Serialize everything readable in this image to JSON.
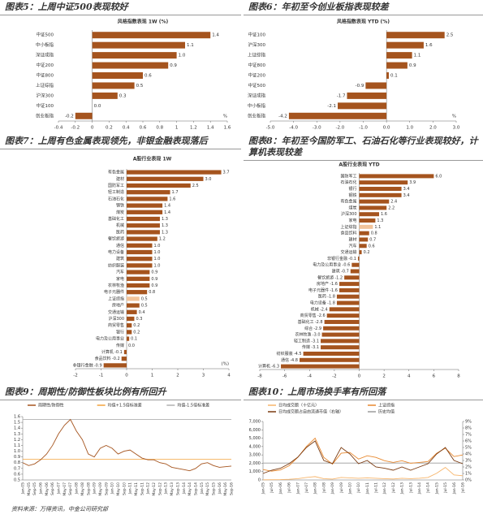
{
  "chart_data": [
    {
      "type": "hbar",
      "title": "图表5：上周中证500表现较好",
      "subtitle": "风格指数表现 1W (%)",
      "unit_label": "%",
      "categories": [
        "中证500",
        "中小板指",
        "深证成指",
        "中证200",
        "中证800",
        "上证综指",
        "沪深300",
        "中证100",
        "创业板指"
      ],
      "values": [
        1.4,
        1.1,
        1.0,
        0.9,
        0.6,
        0.5,
        0.3,
        0.0,
        -0.2
      ],
      "value_labels": [
        "1.4",
        "1.1",
        "1.0",
        "0.9",
        "0.6",
        "0.5",
        "0.3",
        "0.0",
        "-0.2"
      ],
      "color": "#a5541e",
      "xlim": [
        -0.4,
        1.6
      ],
      "xticks": [
        -0.4,
        -0.2,
        0,
        0.2,
        0.4,
        0.6,
        0.8,
        1,
        1.2,
        1.4,
        1.6
      ]
    },
    {
      "type": "hbar",
      "title": "图表6：年初至今创业板指表现较差",
      "subtitle": "风格指数表现 YTD (%)",
      "unit_label": "%",
      "categories": [
        "中证100",
        "沪深300",
        "上证综指",
        "中证800",
        "中证200",
        "中证500",
        "深证成指",
        "中小板指",
        "创业板指"
      ],
      "values": [
        2.5,
        1.6,
        1.1,
        0.9,
        0.1,
        -0.9,
        -1.7,
        -2.1,
        -4.2
      ],
      "color": "#a5541e",
      "xlim": [
        -5,
        3
      ],
      "xticks": [
        {
          "value": -5,
          "label": "-5.0"
        },
        {
          "value": -4,
          "label": "-4.0"
        },
        {
          "value": -3,
          "label": "-3.0"
        },
        {
          "value": -2,
          "label": "-2.0"
        },
        {
          "value": -1,
          "label": "-1.0"
        },
        {
          "value": 0,
          "label": "0.0"
        },
        {
          "value": 1,
          "label": "1.0"
        },
        {
          "value": 2,
          "label": "2.0"
        },
        {
          "value": 3,
          "label": "3.0"
        }
      ]
    },
    {
      "type": "hbar",
      "title": "图表7：上周有色金属表现领先，非银金融表现落后",
      "subtitle": "A股行业表现 1W",
      "unit_label": "(%)",
      "categories": [
        "有色金属",
        "建材",
        "国防军工",
        "轻工制造",
        "石油石化",
        "钢铁",
        "煤炭",
        "基础化工",
        "机械",
        "医药",
        "餐饮旅游",
        "通信",
        "电力设备",
        "建筑",
        "纺织服装",
        "汽车",
        "家电",
        "农林牧渔",
        "电子元器件",
        "上证综指",
        "房地产",
        "交通运输",
        "沪深300",
        "商贸零售",
        "银行",
        "电力及公用事业",
        "传媒",
        "计算机",
        "食品饮料",
        "非银行金融"
      ],
      "values": [
        3.7,
        3.0,
        2.5,
        1.7,
        1.6,
        1.4,
        1.4,
        1.3,
        1.3,
        1.3,
        1.2,
        1.0,
        1.0,
        1.0,
        1.0,
        0.9,
        0.9,
        0.9,
        0.8,
        0.5,
        0.5,
        0.4,
        0.3,
        0.2,
        0.2,
        0.1,
        0.0,
        -0.1,
        -0.2,
        -0.9
      ],
      "value_labels": [
        "3.7",
        "3.0",
        "2.5",
        "1.7",
        "1.6",
        "1.4",
        "1.4",
        "1.3",
        "1.3",
        "1.3",
        "1.2",
        "1.0",
        "1.0",
        "1.0",
        "1.0",
        "0.9",
        "0.9",
        "0.9",
        "0.8",
        "0.5",
        "0.5",
        "0.4",
        "0.3",
        "0.2",
        "0.2",
        "0.1",
        "0.0",
        "-0.1",
        "-0.2",
        "-0.9"
      ],
      "color": "#a5541e",
      "highlight_color": "#f2c49b",
      "highlight_categories": [
        "上证综指"
      ],
      "xlim": [
        -2,
        4
      ],
      "xticks": [
        -2,
        -1,
        0,
        1,
        2,
        3,
        4
      ]
    },
    {
      "type": "hbar",
      "title": "图表8：年初至今国防军工、石油石化等行业表现较好，计算机表现较差",
      "subtitle": "A股行业表现 YTD",
      "categories": [
        "国防军工",
        "石油石化",
        "银行",
        "钢铁",
        "有色金属",
        "煤炭",
        "沪深300",
        "家电",
        "上证综指",
        "食品饮料",
        "建材",
        "汽车",
        "交通运输",
        "非银行金融",
        "电力及公用事业",
        "建筑",
        "餐饮旅游",
        "房地产",
        "电子元器件",
        "医药",
        "电力设备",
        "机械",
        "商贸零售",
        "基础化工",
        "综合",
        "农林牧渔",
        "轻工制造",
        "传媒",
        "纺织服装",
        "通信",
        "计算机"
      ],
      "values": [
        6.0,
        3.9,
        3.4,
        3.4,
        2.4,
        2.2,
        1.6,
        1.3,
        1.1,
        0.8,
        0.7,
        0.6,
        0.2,
        -0.1,
        -0.6,
        -0.7,
        -1.2,
        -1.6,
        -1.6,
        -1.8,
        -1.8,
        -2.4,
        -2.6,
        -2.8,
        -2.9,
        -3.0,
        -3.1,
        -3.1,
        -4.5,
        -4.8,
        -6.3
      ],
      "value_labels": [
        "6.0",
        "3.9",
        "3.4",
        "3.4",
        "2.4",
        "2.2",
        "1.6",
        "1.3",
        "1.1",
        "0.8",
        "0.7",
        "0.6",
        "0.2",
        "-0.1",
        "-0.6",
        "-0.7",
        "-1.2",
        "-1.6",
        "-1.6",
        "-1.8",
        "-1.8",
        "-2.4",
        "-2.6",
        "-2.8",
        "-2.9",
        "-3.0",
        "-3.1",
        "-3.1",
        "-4.5",
        "-4.8",
        "-6.3"
      ],
      "color": "#a5541e",
      "highlight_color": "#f2c49b",
      "highlight_categories": [
        "上证综指"
      ],
      "xlim": [
        -8,
        8
      ],
      "xticks": [
        -8,
        -6,
        -4,
        -2,
        0,
        2,
        4,
        6,
        8
      ]
    },
    {
      "type": "line",
      "title": "图表9：周期性/防御性板块比例有所回升",
      "categories": [
        "Jan-05",
        "May-05",
        "Sep-05",
        "Jan-06",
        "May-06",
        "Sep-06",
        "Jan-07",
        "May-07",
        "Sep-07",
        "Jan-08",
        "May-08",
        "Sep-08",
        "Jan-09",
        "May-09",
        "Sep-09",
        "Jan-10",
        "May-10",
        "Sep-10",
        "Jan-11",
        "May-11",
        "Sep-11",
        "Jan-12",
        "May-12",
        "Sep-12",
        "Jan-13",
        "May-13",
        "Sep-13",
        "Jan-14",
        "May-14",
        "Sep-14",
        "Jan-15",
        "May-15",
        "Sep-15",
        "Jan-16",
        "May-16",
        "Sep-16"
      ],
      "series": [
        {
          "name": "周期性/防御性",
          "color": "#a5541e",
          "values": [
            0.8,
            0.75,
            0.78,
            0.85,
            0.95,
            1.1,
            1.3,
            1.45,
            1.55,
            1.35,
            1.2,
            0.95,
            0.9,
            1.05,
            1.1,
            1.05,
            0.95,
            1.0,
            1.02,
            0.95,
            0.88,
            0.85,
            0.85,
            0.8,
            0.78,
            0.72,
            0.7,
            0.68,
            0.66,
            0.7,
            0.78,
            0.8,
            0.75,
            0.72,
            0.73,
            0.74
          ]
        }
      ],
      "ref_lines": [
        {
          "name": "均值+1.5倍标准差",
          "color": "#f3a33c",
          "value": 0.86
        },
        {
          "name": "均值-1.5倍标准差",
          "color": "#b0b0b0",
          "value": 1.55
        }
      ],
      "ylim": [
        0.5,
        1.6
      ],
      "yticks": [
        0.5,
        0.6,
        0.7,
        0.8,
        0.9,
        {
          "value": 1,
          "label": "1.0"
        },
        1.1,
        1.2,
        1.3,
        1.4,
        1.5,
        1.6
      ]
    },
    {
      "type": "line",
      "title": "图表10：上周市场换手率有所回落",
      "categories": [
        "Jan-05",
        "Jul-05",
        "Jan-06",
        "Jul-06",
        "Jan-07",
        "Jul-07",
        "Jan-08",
        "Jul-08",
        "Jan-09",
        "Jul-09",
        "Jan-10",
        "Jul-10",
        "Jan-11",
        "Jul-11",
        "Jan-12",
        "Jul-12",
        "Jan-13",
        "Jul-13",
        "Jan-14",
        "Jul-14",
        "Jan-15",
        "Jul-15",
        "Jan-16",
        "Jul-16"
      ],
      "series": [
        {
          "name": "日均成交额（十亿元）",
          "color": "#f7b56b",
          "values": [
            20,
            30,
            40,
            80,
            150,
            300,
            400,
            150,
            100,
            300,
            250,
            200,
            250,
            200,
            150,
            120,
            200,
            150,
            200,
            300,
            800,
            1500,
            600,
            500
          ]
        },
        {
          "name": "上证综指",
          "color": "#e8892f",
          "values": [
            1250,
            1050,
            1200,
            1700,
            2700,
            4000,
            5000,
            2700,
            1900,
            3200,
            3300,
            2500,
            2900,
            2700,
            2300,
            2100,
            2300,
            2000,
            2100,
            2200,
            3200,
            3800,
            2800,
            3000
          ]
        },
        {
          "name": "日均成交额占自由流通市值（右轴）",
          "color": "#7a3a10",
          "axis": "y2",
          "values": [
            1.0,
            1.5,
            1.8,
            2.5,
            3.5,
            5,
            6,
            3,
            2.5,
            5,
            4,
            2.5,
            3,
            2,
            1.8,
            1.5,
            2,
            1.5,
            2,
            2.5,
            4,
            5,
            3,
            2.5
          ]
        }
      ],
      "ref_lines": [
        {
          "name": "历史均值",
          "color": "#9a9a9a",
          "value": 2.6,
          "axis": "y2"
        }
      ],
      "ylim": [
        0,
        7000
      ],
      "yticks": [
        0,
        {
          "value": 1000,
          "label": "1,000"
        },
        {
          "value": 2000,
          "label": "2,000"
        },
        {
          "value": 3000,
          "label": "3,000"
        },
        {
          "value": 4000,
          "label": "4,000"
        },
        {
          "value": 5000,
          "label": "5,000"
        },
        {
          "value": 6000,
          "label": "6,000"
        },
        {
          "value": 7000,
          "label": "7,000"
        }
      ],
      "y2lim": [
        0,
        9
      ],
      "y2ticks": [
        {
          "value": 0,
          "label": "0%"
        },
        {
          "value": 1,
          "label": "1%"
        },
        {
          "value": 2,
          "label": "2%"
        },
        {
          "value": 3,
          "label": "3%"
        },
        {
          "value": 4,
          "label": "4%"
        },
        {
          "value": 5,
          "label": "5%"
        },
        {
          "value": 6,
          "label": "6%"
        },
        {
          "value": 7,
          "label": "7%"
        },
        {
          "value": 8,
          "label": "8%"
        },
        {
          "value": 9,
          "label": "9%"
        }
      ]
    }
  ],
  "footer": "资料来源：万得资讯，中金公司研究部"
}
